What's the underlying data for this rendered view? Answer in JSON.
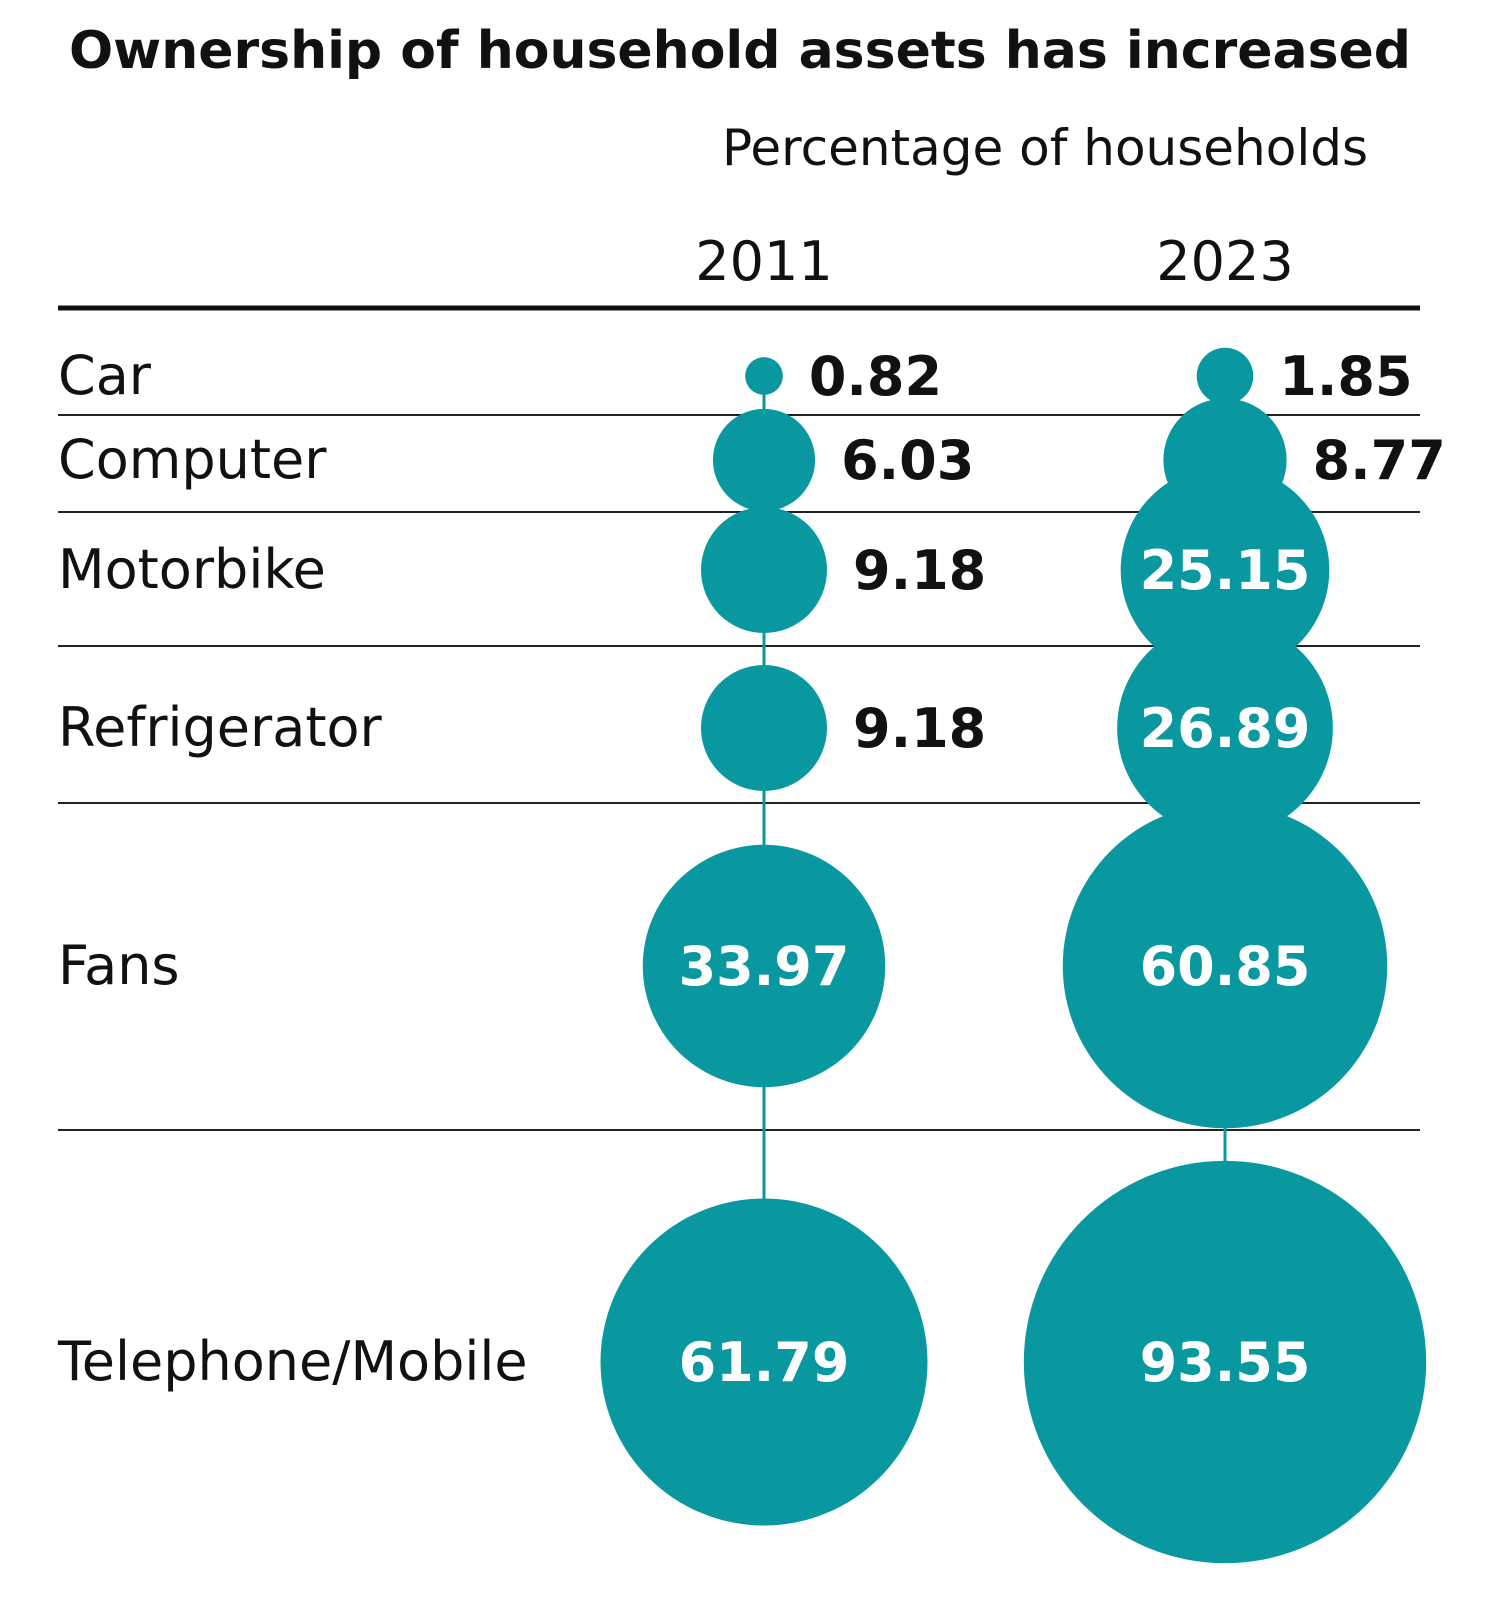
{
  "chart_data": {
    "type": "bubble",
    "title": "Ownership of household assets has increased",
    "subtitle": "Percentage of households",
    "years": [
      "2011",
      "2023"
    ],
    "categories": [
      "Car",
      "Computer",
      "Motorbike",
      "Refrigerator",
      "Fans",
      "Telephone/Mobile"
    ],
    "series": [
      {
        "name": "2011",
        "values": [
          0.82,
          6.03,
          9.18,
          9.18,
          33.97,
          61.79
        ]
      },
      {
        "name": "2023",
        "values": [
          1.85,
          8.77,
          25.15,
          26.89,
          60.85,
          93.55
        ]
      }
    ],
    "value_labels": [
      [
        "0.82",
        "6.03",
        "9.18",
        "9.18",
        "33.97",
        "61.79"
      ],
      [
        "1.85",
        "8.77",
        "25.15",
        "26.89",
        "60.85",
        "93.55"
      ]
    ],
    "bubble_color": "#0a98a0",
    "grid": true
  }
}
